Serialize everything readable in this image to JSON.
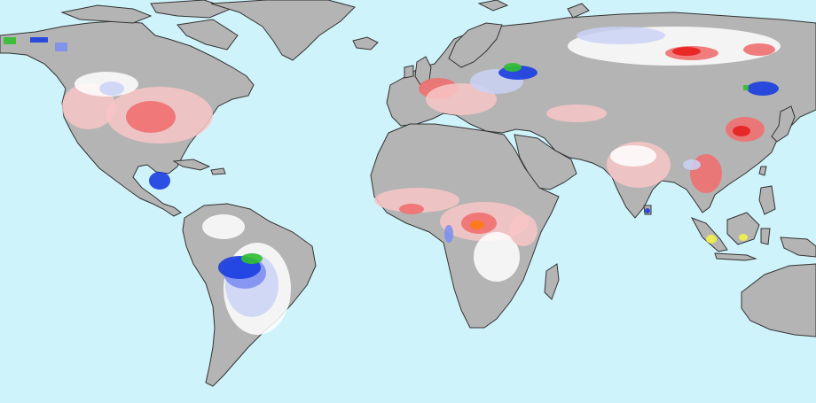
{
  "map": {
    "colors": {
      "ocean": "#cff3fb",
      "land": "#b4b4b4",
      "coast": "#333333",
      "red_strong": "#e81e1e",
      "red_mid": "#f07070",
      "red_light": "#f8c6c6",
      "white": "#ffffff",
      "blue_light": "#c9d2f6",
      "blue_mid": "#7e8ff0",
      "blue_strong": "#1a3de0",
      "green": "#30c030",
      "orange": "#ff7a10",
      "yellow": "#f2f04a"
    }
  }
}
